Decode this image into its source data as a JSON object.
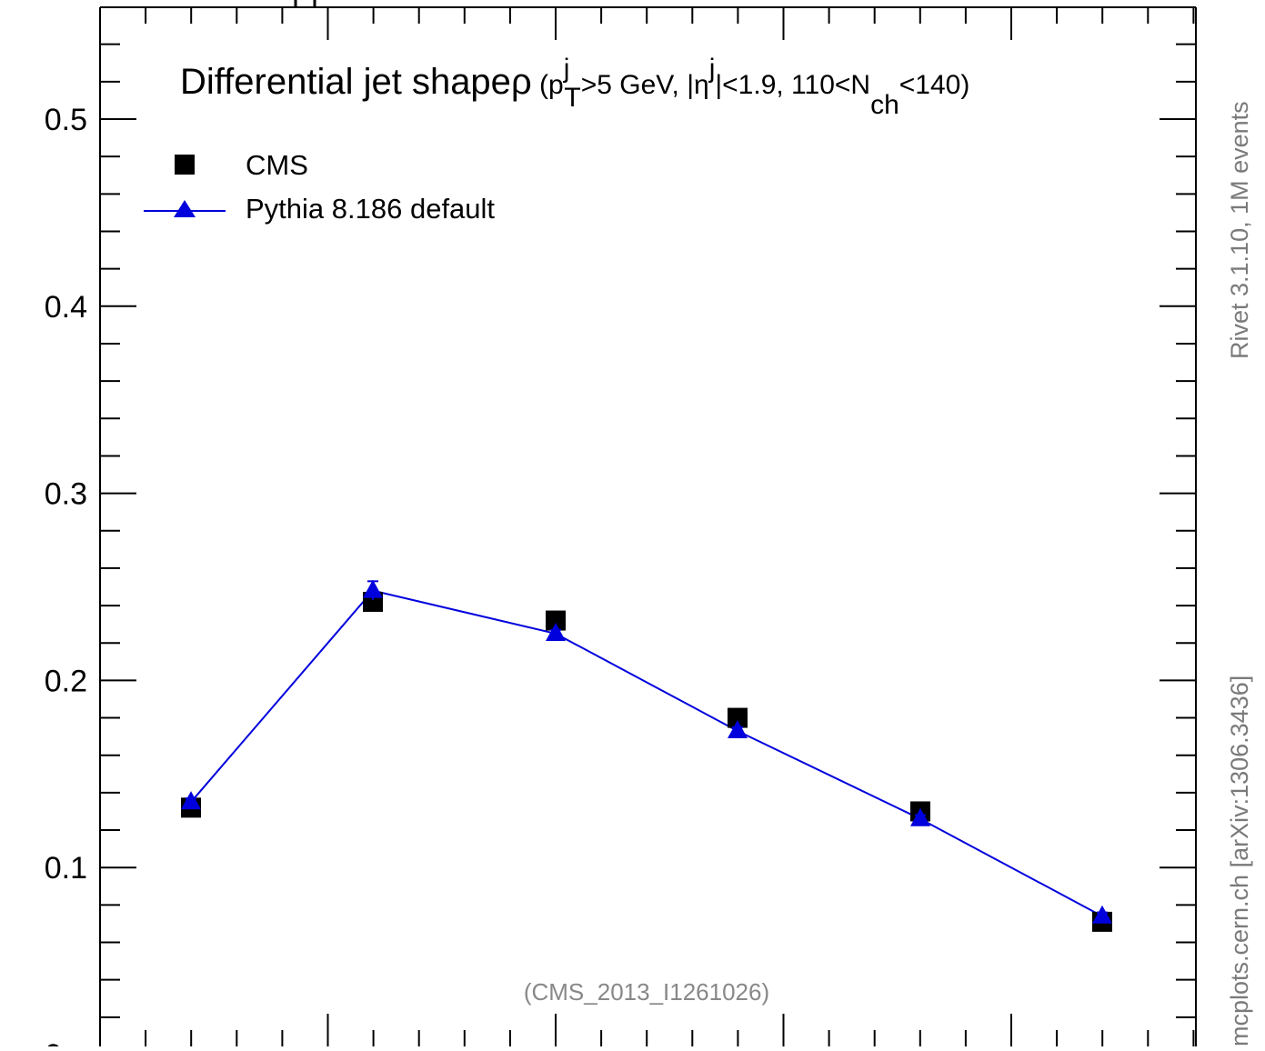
{
  "chart_data": {
    "type": "line",
    "title_main": "Differential jet shape",
    "title_rho": "ρ",
    "title_cond": {
      "open": " (p",
      "pt_sup": "j",
      "pt_sub": "T",
      "pt_cut": ">5 GeV, |η",
      "eta_sup": "j",
      "eta_cut": "|<1.9, 110<N",
      "nch_sub": "ch",
      "close": "<140)"
    },
    "ylim": [
      0,
      0.55
    ],
    "y_ticks": [
      "0.1",
      "0.2",
      "0.3",
      "0.4",
      "0.5"
    ],
    "y_tick_values": [
      0.1,
      0.2,
      0.3,
      0.4,
      0.5
    ],
    "x": [
      1,
      2,
      3,
      4,
      5,
      6
    ],
    "xlim": [
      0.5,
      6.5
    ],
    "series": [
      {
        "name": "CMS",
        "marker": "square",
        "color": "#000000",
        "values": [
          0.132,
          0.242,
          0.232,
          0.18,
          0.13,
          0.071
        ]
      },
      {
        "name": "Pythia 8.186 default",
        "marker": "triangle",
        "color": "#0000dd",
        "values": [
          0.135,
          0.248,
          0.225,
          0.173,
          0.126,
          0.074
        ],
        "errors": [
          0.002,
          0.005,
          0.002,
          0.002,
          0.002,
          0.002
        ]
      }
    ],
    "legend_position": "top-left",
    "annotation": "(CMS_2013_I1261026)"
  },
  "side_labels": {
    "rivet": "Rivet 3.1.10,  1M events",
    "mcplots": "mcplots.cern.ch [arXiv:1306.3436]"
  },
  "cropped_bottom_tick": "0"
}
